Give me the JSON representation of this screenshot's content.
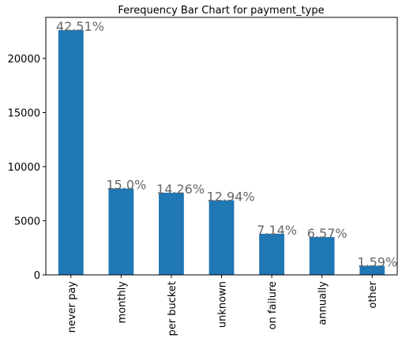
{
  "chart_data": {
    "type": "bar",
    "title": "Ferequency Bar Chart for payment_type",
    "categories": [
      "never pay",
      "monthly",
      "per bucket",
      "unknown",
      "on failure",
      "annually",
      "other"
    ],
    "values": [
      22615,
      7980,
      7586,
      6884,
      3798,
      3495,
      846
    ],
    "annotations": [
      "42.51%",
      "15.0%",
      "14.26%",
      "12.94%",
      "7.14%",
      "6.57%",
      "1.59%"
    ],
    "color": "#1f77b4",
    "ylim": [
      0,
      23790
    ],
    "yticks": [
      0,
      5000,
      10000,
      15000,
      20000
    ],
    "grid": false
  }
}
